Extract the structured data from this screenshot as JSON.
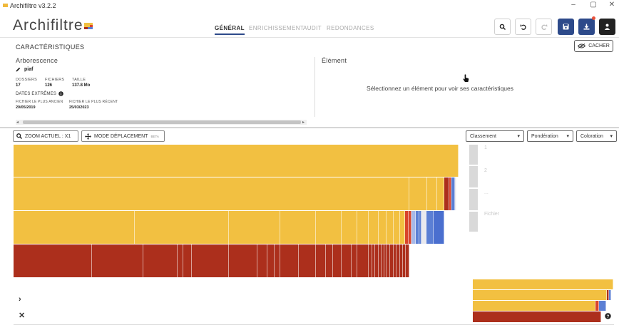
{
  "window": {
    "title": "Archifiltre v3.2.2",
    "minimize": "–",
    "maximize": "▢",
    "close": "✕"
  },
  "header": {
    "logo": "Archifiltre",
    "tabs": [
      {
        "label": "GÉNÉRAL",
        "active": true
      },
      {
        "label": "ENRICHISSEMENT",
        "active": false
      },
      {
        "label": "AUDIT",
        "active": false
      },
      {
        "label": "REDONDANCES",
        "active": false
      }
    ],
    "buttons": [
      {
        "name": "search",
        "icon": "search-icon"
      },
      {
        "name": "undo",
        "icon": "undo-icon"
      },
      {
        "name": "redo",
        "icon": "redo-icon"
      },
      {
        "name": "save",
        "icon": "save-icon"
      },
      {
        "name": "export",
        "icon": "download-icon"
      },
      {
        "name": "user",
        "icon": "user-icon"
      }
    ]
  },
  "characteristics": {
    "title": "CARACTÉRISTIQUES",
    "hide_label": "CACHER",
    "tree": {
      "title": "Arborescence",
      "folder_name": "piaf",
      "folders_label": "DOSSIERS",
      "files_label": "FICHIERS",
      "size_label": "TAILLE",
      "folders_value": "17",
      "files_value": "126",
      "size_value": "137.8 Mo",
      "dates_title": "DATES EXTRÊMES",
      "oldest_label": "FICHIER LE PLUS ANCIEN",
      "newest_label": "FICHIER LE PLUS RÉCENT",
      "oldest_value": "20/05/2019",
      "newest_value": "25/03/2023"
    },
    "element": {
      "title": "Élément",
      "empty_message": "Sélectionnez un élément pour voir ses caractéristiques"
    }
  },
  "toolbar": {
    "zoom_label": "ZOOM ACTUEL : X1",
    "move_label": "MODE DÉPLACEMENT",
    "move_badge": "BETA",
    "sort_label": "Classement",
    "weight_label": "Pondération",
    "color_label": "Coloration"
  },
  "levels": {
    "labels": [
      "1",
      "2",
      "...",
      "Fichier"
    ]
  },
  "colors": {
    "yellow": "#f2c041",
    "red": "#ac2f1c",
    "blue": "#5b7fd4",
    "accent": "#2d4a8a"
  }
}
